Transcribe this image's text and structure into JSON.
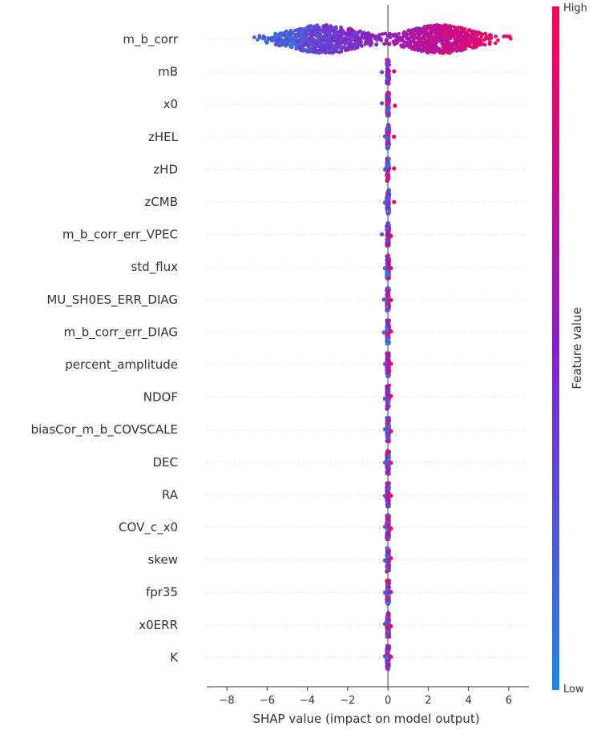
{
  "chart_data": {
    "type": "scatter",
    "subtype": "shap-beeswarm",
    "title": "",
    "xlabel": "SHAP value (impact on model output)",
    "ylabel": "",
    "xlim": [
      -9,
      7
    ],
    "xticks": [
      -8,
      -6,
      -4,
      -2,
      0,
      2,
      4,
      6
    ],
    "grid": false,
    "features": [
      {
        "name": "m_b_corr",
        "min": -8.3,
        "max": 6.3
      },
      {
        "name": "mB",
        "min": -0.3,
        "max": 0.3
      },
      {
        "name": "x0",
        "min": -0.3,
        "max": 0.35
      },
      {
        "name": "zHEL",
        "min": -0.15,
        "max": 0.3
      },
      {
        "name": "zHD",
        "min": -0.15,
        "max": 0.3
      },
      {
        "name": "zCMB",
        "min": -0.15,
        "max": 0.3
      },
      {
        "name": "m_b_corr_err_VPEC",
        "min": -0.3,
        "max": 0.15
      },
      {
        "name": "std_flux",
        "min": -0.15,
        "max": 0.15
      },
      {
        "name": "MU_SH0ES_ERR_DIAG",
        "min": -0.2,
        "max": 0.15
      },
      {
        "name": "m_b_corr_err_DIAG",
        "min": -0.2,
        "max": 0.15
      },
      {
        "name": "percent_amplitude",
        "min": -0.15,
        "max": 0.15
      },
      {
        "name": "NDOF",
        "min": -0.15,
        "max": 0.15
      },
      {
        "name": "biasCor_m_b_COVSCALE",
        "min": -0.15,
        "max": 0.15
      },
      {
        "name": "DEC",
        "min": -0.15,
        "max": 0.15
      },
      {
        "name": "RA",
        "min": -0.15,
        "max": 0.15
      },
      {
        "name": "COV_c_x0",
        "min": -0.15,
        "max": 0.15
      },
      {
        "name": "skew",
        "min": -0.15,
        "max": 0.15
      },
      {
        "name": "fpr35",
        "min": -0.15,
        "max": 0.15
      },
      {
        "name": "x0ERR",
        "min": -0.15,
        "max": 0.15
      },
      {
        "name": "K",
        "min": -0.15,
        "max": 0.15
      }
    ],
    "colorbar": {
      "title": "Feature value",
      "high_label": "High",
      "low_label": "Low",
      "low_color": "#1E88E5",
      "high_color": "#FF0052"
    }
  }
}
